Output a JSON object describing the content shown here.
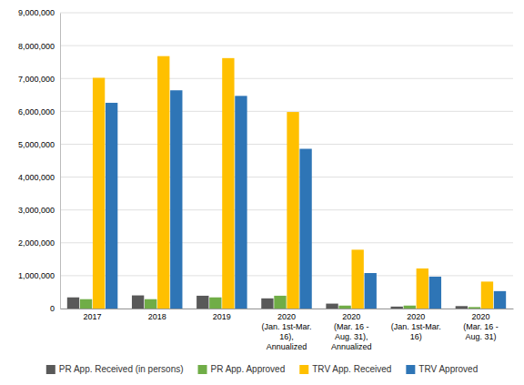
{
  "chart_data": {
    "type": "bar",
    "categories": [
      "2017",
      "2018",
      "2019",
      "2020\n(Jan. 1st-Mar.\n16),\nAnnualized",
      "2020\n(Mar. 16 -\nAug. 31),\nAnnualized",
      "2020\n(Jan. 1st-Mar.\n16)",
      "2020\n(Mar. 16 -\nAug. 31)"
    ],
    "series": [
      {
        "name": "PR App. Received (in persons)",
        "color": "#595959",
        "values": [
          340000,
          400000,
          390000,
          310000,
          150000,
          60000,
          75000
        ]
      },
      {
        "name": "PR App. Approved",
        "color": "#70ad47",
        "values": [
          285000,
          285000,
          340000,
          390000,
          90000,
          90000,
          45000
        ]
      },
      {
        "name": "TRV App. Received",
        "color": "#ffc000",
        "values": [
          7020000,
          7680000,
          7620000,
          5980000,
          1790000,
          1220000,
          820000
        ]
      },
      {
        "name": "TRV Approved",
        "color": "#2e75b6",
        "values": [
          6260000,
          6640000,
          6470000,
          4860000,
          1080000,
          970000,
          530000
        ]
      }
    ],
    "ylim": [
      0,
      9000000
    ],
    "yticks": [
      0,
      {
        "value": 1000000,
        "label": "1,000,000"
      },
      {
        "value": 2000000,
        "label": "2,000,000"
      },
      {
        "value": 3000000,
        "label": "3,000,000"
      },
      {
        "value": 4000000,
        "label": "4,000,000"
      },
      {
        "value": 5000000,
        "label": "5,000,000"
      },
      {
        "value": 6000000,
        "label": "6,000,000"
      },
      {
        "value": 7000000,
        "label": "7,000,000"
      },
      {
        "value": 8000000,
        "label": "8,000,000"
      },
      {
        "value": 9000000,
        "label": "9,000,000"
      }
    ],
    "grid": true,
    "legend": "bottom"
  }
}
